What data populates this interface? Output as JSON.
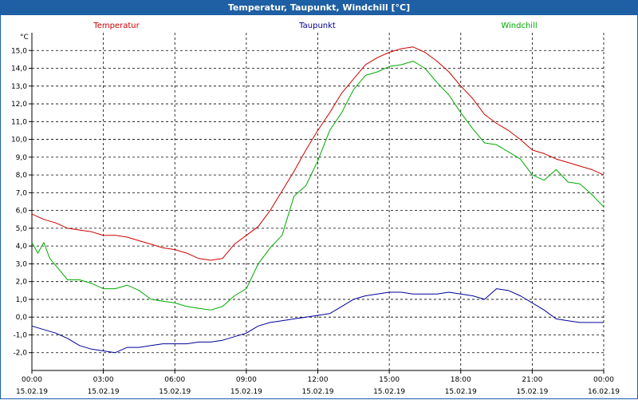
{
  "window": {
    "title": "Temperatur, Taupunkt, Windchill [°C]"
  },
  "chart_data": {
    "type": "line",
    "title": "Temperatur, Taupunkt, Windchill [°C]",
    "ylabel": "°C",
    "ylim": [
      -3,
      16
    ],
    "grid": true,
    "legend_position": "top",
    "y_ticks": [
      "-2,0",
      "-1,0",
      "0,0",
      "1,0",
      "2,0",
      "3,0",
      "4,0",
      "5,0",
      "6,0",
      "7,0",
      "8,0",
      "9,0",
      "10,0",
      "11,0",
      "12,0",
      "13,0",
      "14,0",
      "15,0"
    ],
    "y_tick_values": [
      -2,
      -1,
      0,
      1,
      2,
      3,
      4,
      5,
      6,
      7,
      8,
      9,
      10,
      11,
      12,
      13,
      14,
      15
    ],
    "x_ticks": [
      {
        "time": "00:00",
        "date": "15.02.19"
      },
      {
        "time": "03:00",
        "date": "15.02.19"
      },
      {
        "time": "06:00",
        "date": "15.02.19"
      },
      {
        "time": "09:00",
        "date": "15.02.19"
      },
      {
        "time": "12:00",
        "date": "15.02.19"
      },
      {
        "time": "15:00",
        "date": "15.02.19"
      },
      {
        "time": "18:00",
        "date": "15.02.19"
      },
      {
        "time": "21:00",
        "date": "15.02.19"
      },
      {
        "time": "00:00",
        "date": "16.02.19"
      }
    ],
    "x_tick_hours": [
      0,
      3,
      6,
      9,
      12,
      15,
      18,
      21,
      24
    ],
    "xlim_hours": [
      0,
      24
    ],
    "series": [
      {
        "name": "Temperatur",
        "color": "#cc0000",
        "x": [
          0,
          0.5,
          1,
          1.5,
          2,
          2.5,
          3,
          3.5,
          4,
          4.5,
          5,
          5.5,
          6,
          6.5,
          7,
          7.5,
          8,
          8.5,
          9,
          9.5,
          10,
          10.5,
          11,
          11.5,
          12,
          12.5,
          13,
          13.5,
          14,
          14.5,
          15,
          15.5,
          16,
          16.5,
          17,
          17.5,
          18,
          18.5,
          19,
          19.5,
          20,
          20.5,
          21,
          21.5,
          22,
          22.5,
          23,
          23.5,
          24
        ],
        "values": [
          5.8,
          5.5,
          5.3,
          5.0,
          4.9,
          4.8,
          4.6,
          4.6,
          4.5,
          4.3,
          4.1,
          3.9,
          3.8,
          3.6,
          3.3,
          3.2,
          3.3,
          4.1,
          4.6,
          5.1,
          6.0,
          7.1,
          8.2,
          9.4,
          10.5,
          11.5,
          12.6,
          13.4,
          14.2,
          14.6,
          14.9,
          15.1,
          15.2,
          14.9,
          14.4,
          13.8,
          13.0,
          12.3,
          11.4,
          10.9,
          10.5,
          10.0,
          9.4,
          9.2,
          8.9,
          8.7,
          8.5,
          8.3,
          8.0
        ]
      },
      {
        "name": "Taupunkt",
        "color": "#000099",
        "x": [
          0,
          0.5,
          1,
          1.5,
          2,
          2.5,
          3,
          3.5,
          4,
          4.5,
          5,
          5.5,
          6,
          6.5,
          7,
          7.5,
          8,
          8.5,
          9,
          9.5,
          10,
          10.5,
          11,
          11.5,
          12,
          12.5,
          13,
          13.5,
          14,
          14.5,
          15,
          15.5,
          16,
          16.5,
          17,
          17.5,
          18,
          18.5,
          19,
          19.5,
          20,
          20.5,
          21,
          21.5,
          22,
          22.5,
          23,
          23.5,
          24
        ],
        "values": [
          -0.5,
          -0.7,
          -0.9,
          -1.2,
          -1.6,
          -1.8,
          -1.9,
          -2.0,
          -1.7,
          -1.7,
          -1.6,
          -1.5,
          -1.5,
          -1.5,
          -1.4,
          -1.4,
          -1.3,
          -1.1,
          -0.9,
          -0.5,
          -0.3,
          -0.2,
          -0.1,
          0.0,
          0.1,
          0.2,
          0.6,
          1.0,
          1.2,
          1.3,
          1.4,
          1.4,
          1.3,
          1.3,
          1.3,
          1.4,
          1.3,
          1.2,
          1.0,
          1.6,
          1.5,
          1.2,
          0.8,
          0.4,
          -0.1,
          -0.2,
          -0.3,
          -0.3,
          -0.3
        ]
      },
      {
        "name": "Windchill",
        "color": "#00aa00",
        "x": [
          0,
          0.25,
          0.5,
          0.75,
          1,
          1.5,
          2,
          2.5,
          3,
          3.5,
          4,
          4.5,
          5,
          5.5,
          6,
          6.5,
          7,
          7.5,
          8,
          8.5,
          9,
          9.5,
          10,
          10.5,
          11,
          11.5,
          12,
          12.5,
          13,
          13.5,
          14,
          14.5,
          15,
          15.5,
          16,
          16.5,
          17,
          17.5,
          18,
          18.5,
          19,
          19.5,
          20,
          20.5,
          21,
          21.5,
          22,
          22.5,
          23,
          23.5,
          24
        ],
        "values": [
          4.2,
          3.6,
          4.2,
          3.3,
          2.9,
          2.1,
          2.1,
          1.9,
          1.6,
          1.6,
          1.8,
          1.5,
          1.0,
          0.9,
          0.8,
          0.6,
          0.5,
          0.4,
          0.6,
          1.2,
          1.6,
          3.0,
          3.9,
          4.6,
          6.8,
          7.4,
          8.8,
          10.5,
          11.5,
          12.8,
          13.6,
          13.8,
          14.1,
          14.2,
          14.4,
          14.0,
          13.2,
          12.5,
          11.5,
          10.6,
          9.8,
          9.7,
          9.3,
          8.9,
          8.0,
          7.7,
          8.3,
          7.6,
          7.5,
          6.9,
          6.2
        ]
      }
    ]
  }
}
